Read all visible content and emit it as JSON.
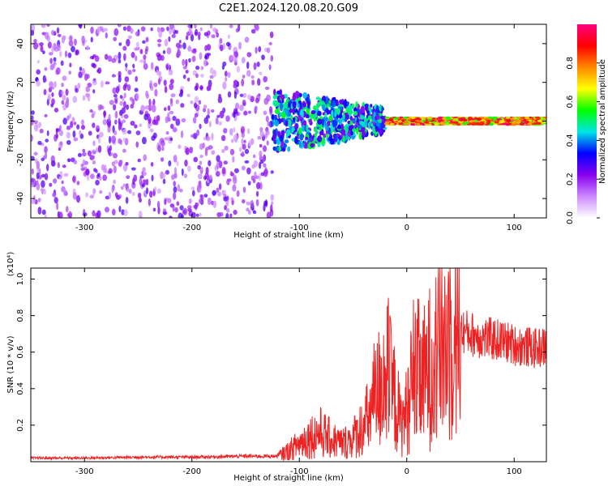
{
  "title": "C2E1.2024.120.08.20.G09",
  "chart_data": [
    {
      "type": "heatmap",
      "xlabel": "Height of straight line (km)",
      "ylabel": "Frequency (Hz)",
      "xlim": [
        -350,
        130
      ],
      "ylim": [
        -50,
        50
      ],
      "xticks": [
        -300,
        -200,
        -100,
        0,
        100
      ],
      "xtick_labels": [
        "-300",
        "-200",
        "-100",
        "0",
        "100"
      ],
      "yticks": [
        -40,
        -20,
        0,
        20,
        40
      ],
      "ytick_labels": [
        "-40",
        "-20",
        "0",
        "20",
        "40"
      ],
      "colorbar": {
        "label": "Normalized spectral amplitude",
        "range": [
          0,
          1
        ],
        "ticks": [
          0.0,
          0.2,
          0.4,
          0.6,
          0.8
        ],
        "tick_labels": [
          "0.0",
          "0.2",
          "0.4",
          "0.6",
          "0.8"
        ],
        "colors": [
          "#ffffff",
          "#cc88ff",
          "#8800ee",
          "#0000ff",
          "#00e5e5",
          "#00ff00",
          "#ffff00",
          "#ff8800",
          "#ff0000",
          "#ff0080"
        ]
      },
      "regions": [
        {
          "x_range": [
            -350,
            -125
          ],
          "freq_spread_hz": 50,
          "amplitude": 0.15,
          "description": "noise"
        },
        {
          "x_range": [
            -125,
            -20
          ],
          "freq_spread_hz": 12,
          "amplitude": 0.35
        },
        {
          "x_range": [
            -20,
            130
          ],
          "freq_spread_hz": 2,
          "amplitude": 0.9
        }
      ]
    },
    {
      "type": "line",
      "xlabel": "Height of straight line (km)",
      "ylabel": "SNR (10 * v/v)",
      "y_multiplier": "(x10⁴)",
      "xlim": [
        -350,
        130
      ],
      "ylim": [
        0,
        1.06
      ],
      "xticks": [
        -300,
        -200,
        -100,
        0,
        100
      ],
      "xtick_labels": [
        "-300",
        "-200",
        "-100",
        "0",
        "100"
      ],
      "yticks": [
        0.2,
        0.4,
        0.6,
        0.8,
        1.0
      ],
      "ytick_labels": [
        "0.2",
        "0.4",
        "0.6",
        "0.8",
        "1.0"
      ],
      "line_color": "#ee2222",
      "series": [
        {
          "x": [
            -350,
            -300,
            -250,
            -200,
            -150,
            -120,
            -110,
            -100,
            -90,
            -80,
            -70,
            -60,
            -50,
            -40,
            -35,
            -30,
            -25,
            -20,
            -15,
            -10,
            -5,
            0,
            5,
            10,
            15,
            20,
            25,
            30,
            35,
            40,
            45,
            50,
            60,
            70,
            80,
            90,
            100,
            110,
            120,
            130
          ],
          "y": [
            0.02,
            0.02,
            0.025,
            0.025,
            0.03,
            0.03,
            0.06,
            0.1,
            0.14,
            0.16,
            0.12,
            0.1,
            0.13,
            0.2,
            0.25,
            0.32,
            0.42,
            0.5,
            0.42,
            0.32,
            0.2,
            0.28,
            0.4,
            0.48,
            0.44,
            0.5,
            0.56,
            0.62,
            0.65,
            0.7,
            0.72,
            0.72,
            0.7,
            0.68,
            0.67,
            0.66,
            0.64,
            0.63,
            0.62,
            0.63
          ]
        }
      ]
    }
  ]
}
